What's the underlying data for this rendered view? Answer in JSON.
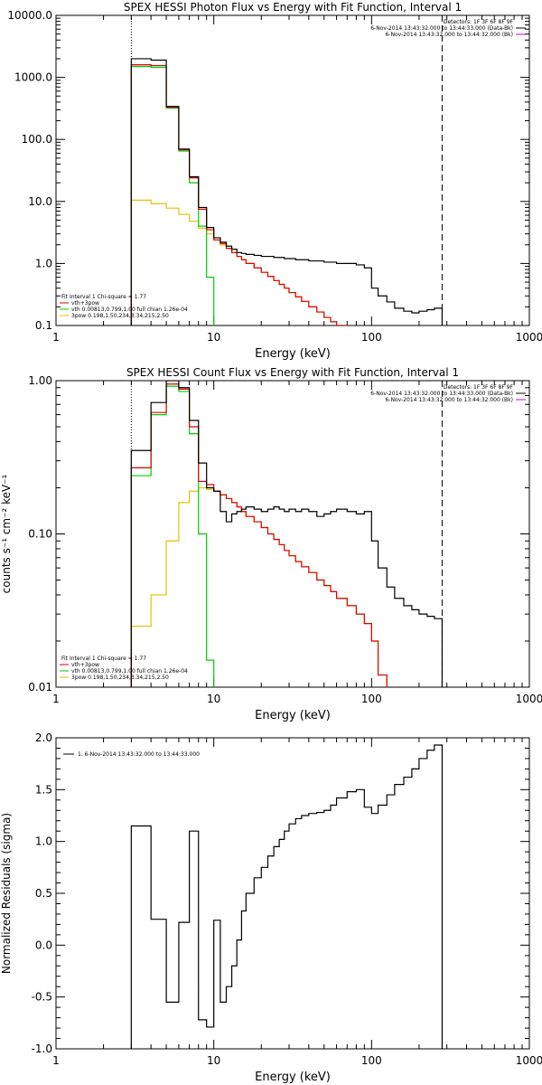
{
  "chart_data": [
    {
      "type": "line",
      "title": "SPEX HESSI Photon Flux vs Energy with Fit Function, Interval 1",
      "xlabel": "Energy (keV)",
      "ylabel": "",
      "xscale": "log",
      "yscale": "log",
      "xlim": [
        1,
        1000
      ],
      "ylim": [
        0.1,
        10000
      ],
      "xticks": [
        "1",
        "10",
        "100",
        "1000"
      ],
      "yticks": [
        "0.1",
        "1.0",
        "10.0",
        "100.0",
        "1000.0",
        "10000.0"
      ],
      "ytick_values": [
        0.1,
        1,
        10,
        100,
        1000,
        10000
      ],
      "fit_range": [
        3,
        280
      ],
      "legend_top_right": [
        "Detectors: 1F 3F 6F 8F 9F",
        "6-Nov-2014 13:43:32.000 to 13:44:33.000 (Data-Bk)",
        "6-Nov-2014 13:43:32.000 to 13:44:32.000 (Bk)"
      ],
      "legend_bottom_left": [
        "Fit Interval 1   Chi-square = 1.77",
        "vth+3pow",
        "vth 0.00813,0.799,1.00  full chian 1.26e-04",
        "3pow 0.198,1.50,234,3.34,215,2.50"
      ],
      "series": [
        {
          "name": "Data-Bk",
          "color": "#000000",
          "edges": [
            3,
            4,
            5,
            6,
            7,
            8,
            9,
            10,
            11,
            12,
            13,
            14,
            15,
            16,
            18,
            20,
            22,
            24,
            26,
            28,
            30,
            33,
            36,
            40,
            45,
            50,
            55,
            60,
            70,
            80,
            90,
            100,
            110,
            125,
            140,
            160,
            180,
            200,
            225,
            250,
            280
          ],
          "values": [
            2000,
            1900,
            340,
            70,
            25,
            8,
            3.8,
            2.6,
            2.2,
            1.9,
            1.7,
            1.5,
            1.45,
            1.4,
            1.35,
            1.3,
            1.3,
            1.25,
            1.25,
            1.2,
            1.2,
            1.15,
            1.15,
            1.1,
            1.1,
            1.05,
            1.05,
            1.0,
            1.0,
            0.95,
            0.85,
            0.4,
            0.3,
            0.24,
            0.19,
            0.17,
            0.16,
            0.17,
            0.18,
            0.19
          ]
        },
        {
          "name": "vth+3pow",
          "color": "#dd0000",
          "edges": [
            3,
            4,
            5,
            6,
            7,
            8,
            9,
            10,
            11,
            12,
            13,
            14,
            15,
            16,
            18,
            20,
            22,
            24,
            26,
            28,
            30,
            33,
            36,
            40,
            45,
            50,
            55,
            60,
            70,
            80,
            90,
            100
          ],
          "values": [
            1600,
            1550,
            330,
            68,
            24,
            7.5,
            3.5,
            2.4,
            2.1,
            1.75,
            1.5,
            1.3,
            1.15,
            1.0,
            0.85,
            0.72,
            0.62,
            0.53,
            0.46,
            0.4,
            0.34,
            0.29,
            0.245,
            0.2,
            0.165,
            0.135,
            0.115,
            0.1,
            0.085,
            0.075,
            0.068
          ]
        },
        {
          "name": "vth",
          "color": "#00cc00",
          "edges": [
            3,
            4,
            5,
            6,
            7,
            8,
            9,
            10
          ],
          "values": [
            1500,
            1450,
            320,
            65,
            20,
            4,
            0.6
          ]
        },
        {
          "name": "3pow",
          "color": "#e8c000",
          "edges": [
            3,
            4,
            5,
            6,
            7,
            8,
            9,
            10,
            11,
            12,
            13,
            14,
            15,
            16,
            18,
            20,
            22,
            24,
            26,
            28,
            30,
            33,
            36,
            40,
            45,
            50,
            55,
            60,
            70,
            80,
            90,
            100
          ],
          "values": [
            10.5,
            9.2,
            7.8,
            6.2,
            4.8,
            3.7,
            3.0,
            2.4,
            2.0,
            1.75,
            1.5,
            1.3,
            1.15,
            1.0,
            0.85,
            0.72,
            0.62,
            0.53,
            0.46,
            0.4,
            0.34,
            0.29,
            0.245,
            0.2,
            0.165,
            0.135,
            0.115,
            0.1,
            0.085,
            0.075,
            0.068
          ]
        }
      ]
    },
    {
      "type": "line",
      "title": "SPEX HESSI Count Flux vs Energy with Fit Function, Interval 1",
      "xlabel": "Energy (keV)",
      "ylabel": "counts s⁻¹ cm⁻² keV⁻¹",
      "xscale": "log",
      "yscale": "log",
      "xlim": [
        1,
        1000
      ],
      "ylim": [
        0.01,
        1.0
      ],
      "xticks": [
        "1",
        "10",
        "100",
        "1000"
      ],
      "yticks": [
        "0.01",
        "0.10",
        "1.00"
      ],
      "ytick_values": [
        0.01,
        0.1,
        1.0
      ],
      "fit_range": [
        3,
        280
      ],
      "legend_top_right": [
        "Detectors: 1F 3F 6F 8F 9F",
        "6-Nov-2014 13:43:32.000 to 13:44:33.000 (Data-Bk)",
        "6-Nov-2014 13:43:32.000 to 13:44:32.000 (Bk)"
      ],
      "legend_bottom_left": [
        "Fit Interval 1   Chi-square = 1.77",
        "vth+3pow",
        "vth 0.00813,0.799,1.00  full chian 1.26e-04",
        "3pow 0.198,1.50,234,3.34,215,2.50"
      ],
      "series": [
        {
          "name": "Data-Bk",
          "color": "#000000",
          "edges": [
            3,
            4,
            5,
            6,
            7,
            8,
            9,
            10,
            11,
            12,
            13,
            14,
            15,
            16,
            18,
            20,
            22,
            24,
            26,
            28,
            30,
            33,
            36,
            40,
            45,
            50,
            55,
            60,
            70,
            80,
            90,
            100,
            110,
            125,
            140,
            160,
            180,
            200,
            225,
            250,
            280
          ],
          "values": [
            0.35,
            0.72,
            1.0,
            0.9,
            0.55,
            0.29,
            0.2,
            0.19,
            0.14,
            0.12,
            0.135,
            0.14,
            0.145,
            0.15,
            0.145,
            0.14,
            0.145,
            0.15,
            0.145,
            0.14,
            0.145,
            0.14,
            0.145,
            0.14,
            0.13,
            0.135,
            0.14,
            0.145,
            0.14,
            0.135,
            0.14,
            0.09,
            0.06,
            0.045,
            0.038,
            0.034,
            0.032,
            0.03,
            0.029,
            0.028
          ]
        },
        {
          "name": "vth+3pow",
          "color": "#dd0000",
          "edges": [
            3,
            4,
            5,
            6,
            7,
            8,
            9,
            10,
            11,
            12,
            13,
            14,
            15,
            16,
            18,
            20,
            22,
            24,
            26,
            28,
            30,
            33,
            36,
            40,
            45,
            50,
            55,
            60,
            70,
            80,
            90,
            100,
            110,
            125
          ],
          "values": [
            0.27,
            0.62,
            0.95,
            0.88,
            0.5,
            0.22,
            0.21,
            0.19,
            0.18,
            0.17,
            0.16,
            0.15,
            0.14,
            0.13,
            0.12,
            0.11,
            0.1,
            0.092,
            0.085,
            0.078,
            0.072,
            0.066,
            0.061,
            0.056,
            0.05,
            0.046,
            0.042,
            0.038,
            0.034,
            0.03,
            0.026,
            0.02,
            0.012
          ]
        },
        {
          "name": "vth",
          "color": "#00cc00",
          "edges": [
            3,
            4,
            5,
            6,
            7,
            8,
            9,
            10
          ],
          "values": [
            0.24,
            0.6,
            0.92,
            0.85,
            0.45,
            0.1,
            0.015
          ]
        },
        {
          "name": "3pow",
          "color": "#e8c000",
          "edges": [
            3,
            4,
            5,
            6,
            7,
            8,
            9,
            10,
            11,
            12,
            13,
            14,
            15,
            16,
            18,
            20,
            22,
            24,
            26,
            28,
            30,
            33,
            36,
            40,
            45,
            50,
            55,
            60,
            70,
            80,
            90,
            100,
            110,
            125
          ],
          "values": [
            0.025,
            0.04,
            0.09,
            0.16,
            0.19,
            0.2,
            0.195,
            0.19,
            0.18,
            0.17,
            0.16,
            0.15,
            0.14,
            0.13,
            0.12,
            0.11,
            0.1,
            0.092,
            0.085,
            0.078,
            0.072,
            0.066,
            0.061,
            0.056,
            0.05,
            0.046,
            0.042,
            0.038,
            0.034,
            0.03,
            0.026,
            0.02,
            0.012
          ]
        }
      ]
    },
    {
      "type": "line",
      "title": "",
      "xlabel": "Energy (keV)",
      "ylabel": "Normalized Residuals (sigma)",
      "xscale": "log",
      "yscale": "linear",
      "xlim": [
        1,
        1000
      ],
      "ylim": [
        -1.0,
        2.0
      ],
      "xticks": [
        "1",
        "10",
        "100",
        "1000"
      ],
      "yticks": [
        "-1.0",
        "-0.5",
        "0.0",
        "0.5",
        "1.0",
        "1.5",
        "2.0"
      ],
      "ytick_values": [
        -1.0,
        -0.5,
        0.0,
        0.5,
        1.0,
        1.5,
        2.0
      ],
      "legend_top_left": [
        "1.  6-Nov-2014 13:43:32.000 to 13:44:33.000"
      ],
      "series": [
        {
          "name": "1.  6-Nov-2014 13:43:32.000 to 13:44:33.000",
          "color": "#000000",
          "edges": [
            3,
            4,
            5,
            6,
            7,
            8,
            9,
            10,
            11,
            12,
            13,
            14,
            15,
            16,
            18,
            20,
            22,
            24,
            26,
            28,
            30,
            33,
            36,
            40,
            45,
            50,
            55,
            60,
            70,
            80,
            90,
            100,
            110,
            125,
            140,
            160,
            180,
            200,
            225,
            250,
            280
          ],
          "values": [
            1.15,
            0.25,
            -0.55,
            0.22,
            1.1,
            -0.72,
            -0.79,
            0.24,
            -0.55,
            -0.4,
            -0.2,
            0.05,
            0.33,
            0.5,
            0.65,
            0.75,
            0.86,
            0.95,
            1.02,
            1.1,
            1.17,
            1.22,
            1.25,
            1.27,
            1.28,
            1.3,
            1.35,
            1.42,
            1.48,
            1.5,
            1.33,
            1.27,
            1.35,
            1.45,
            1.55,
            1.62,
            1.7,
            1.8,
            1.88,
            1.93
          ]
        }
      ]
    }
  ]
}
